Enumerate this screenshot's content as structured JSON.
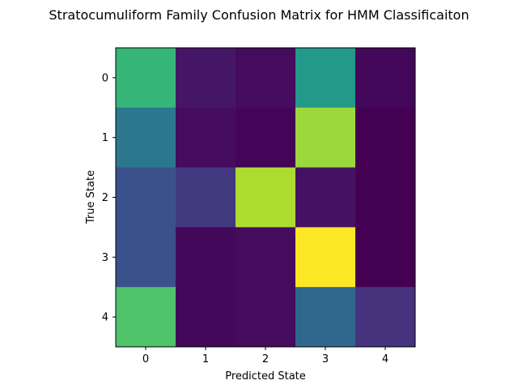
{
  "chart_data": {
    "type": "heatmap",
    "title": "Stratocumuliform Family Confusion Matrix for HMM Classificaiton",
    "xlabel": "Predicted State",
    "ylabel": "True State",
    "x_categories": [
      "0",
      "1",
      "2",
      "3",
      "4"
    ],
    "y_categories": [
      "0",
      "1",
      "2",
      "3",
      "4"
    ],
    "colormap": "viridis",
    "value_range": [
      0,
      1
    ],
    "grid": false,
    "values": [
      [
        0.66,
        0.06,
        0.03,
        0.54,
        0.02
      ],
      [
        0.4,
        0.03,
        0.01,
        0.85,
        0.0
      ],
      [
        0.25,
        0.17,
        0.88,
        0.05,
        0.0
      ],
      [
        0.25,
        0.02,
        0.03,
        1.0,
        0.0
      ],
      [
        0.72,
        0.02,
        0.03,
        0.34,
        0.15
      ]
    ]
  }
}
